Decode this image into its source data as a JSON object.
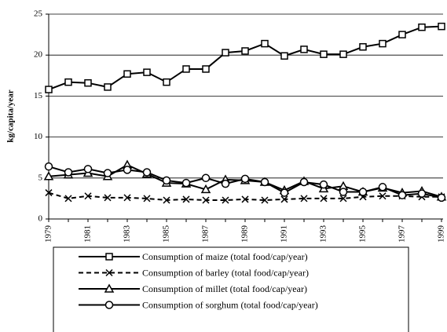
{
  "chart_data": {
    "type": "line",
    "y_label": "kg/capita/year",
    "categories": [
      "1979",
      null,
      "1981",
      null,
      "1983",
      null,
      "1985",
      null,
      "1987",
      null,
      "1989",
      null,
      "1991",
      null,
      "1993",
      null,
      "1995",
      null,
      "1997",
      null,
      "1999"
    ],
    "ylim": [
      0,
      25
    ],
    "yticks": [
      0,
      5,
      10,
      15,
      20,
      25
    ],
    "grid": true,
    "series": [
      {
        "name": "Consumption of maize (total food/cap/year)",
        "color": "#000000",
        "marker": "square",
        "dashed": false,
        "values": [
          15.8,
          16.7,
          16.6,
          16.1,
          17.7,
          17.9,
          16.7,
          18.3,
          18.3,
          20.3,
          20.5,
          21.4,
          19.9,
          20.7,
          20.1,
          20.1,
          21.0,
          21.4,
          22.5,
          23.4,
          23.5
        ]
      },
      {
        "name": "Consumption of barley (total food/cap/year)",
        "color": "#000000",
        "marker": "x",
        "dashed": true,
        "values": [
          3.2,
          2.5,
          2.8,
          2.6,
          2.6,
          2.5,
          2.3,
          2.4,
          2.3,
          2.3,
          2.4,
          2.3,
          2.4,
          2.5,
          2.5,
          2.5,
          2.7,
          2.8,
          2.8,
          2.7,
          2.7
        ]
      },
      {
        "name": "Consumption of millet (total food/cap/year)",
        "color": "#000000",
        "marker": "triangle",
        "dashed": false,
        "values": [
          5.2,
          5.4,
          5.6,
          5.2,
          6.6,
          5.5,
          4.4,
          4.3,
          3.6,
          4.8,
          4.7,
          4.5,
          3.5,
          4.6,
          3.7,
          4.0,
          3.3,
          3.8,
          3.2,
          3.4,
          2.7
        ]
      },
      {
        "name": "Consumption of sorghum (total food/cap/year)",
        "color": "#000000",
        "marker": "circle",
        "dashed": false,
        "values": [
          6.4,
          5.7,
          6.1,
          5.6,
          6.0,
          5.7,
          4.7,
          4.4,
          5.0,
          4.3,
          4.9,
          4.5,
          3.2,
          4.5,
          4.2,
          3.3,
          3.3,
          3.9,
          2.9,
          3.1,
          2.6
        ]
      }
    ]
  }
}
